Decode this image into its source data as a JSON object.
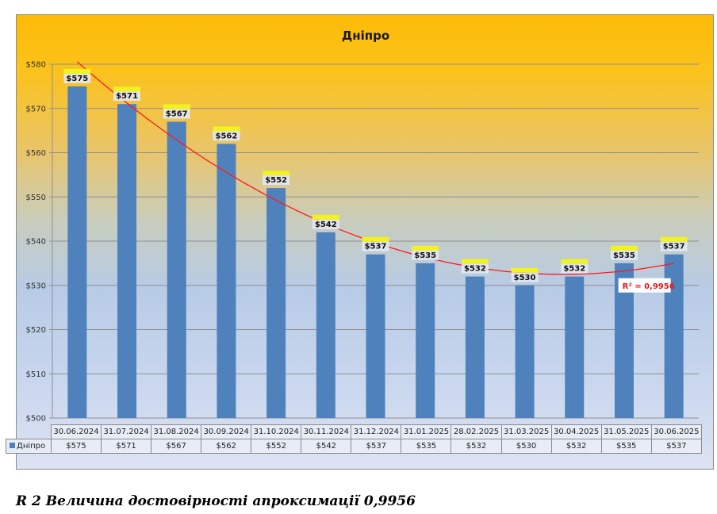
{
  "chart_data": {
    "type": "bar",
    "title": "Дніпро",
    "categories": [
      "30.06.2024",
      "31.07.2024",
      "31.08.2024",
      "30.09.2024",
      "31.10.2024",
      "30.11.2024",
      "31.12.2024",
      "31.01.2025",
      "28.02.2025",
      "31.03.2025",
      "30.04.2025",
      "31.05.2025",
      "30.06.2025"
    ],
    "series": [
      {
        "name": "Дніпро",
        "values": [
          575,
          571,
          567,
          562,
          552,
          542,
          537,
          535,
          532,
          530,
          532,
          535,
          537
        ],
        "color": "#4f81bd"
      }
    ],
    "data_labels": [
      "$575",
      "$571",
      "$567",
      "$562",
      "$552",
      "$542",
      "$537",
      "$535",
      "$532",
      "$530",
      "$532",
      "$535",
      "$537"
    ],
    "ylim": [
      500,
      580
    ],
    "yticks": [
      500,
      510,
      520,
      530,
      540,
      550,
      560,
      570,
      580
    ],
    "ytick_labels": [
      "$500",
      "$510",
      "$520",
      "$530",
      "$540",
      "$550",
      "$560",
      "$570",
      "$580"
    ],
    "xlabel": "",
    "ylabel": "",
    "grid": true,
    "trendline": {
      "type": "polynomial",
      "color": "#ff1a1a",
      "r2_label": "R² = 0,9956"
    },
    "data_table": {
      "series_label": "Дніпро"
    }
  },
  "caption": "R 2 Величина достовірності апроксимації 0,9956"
}
